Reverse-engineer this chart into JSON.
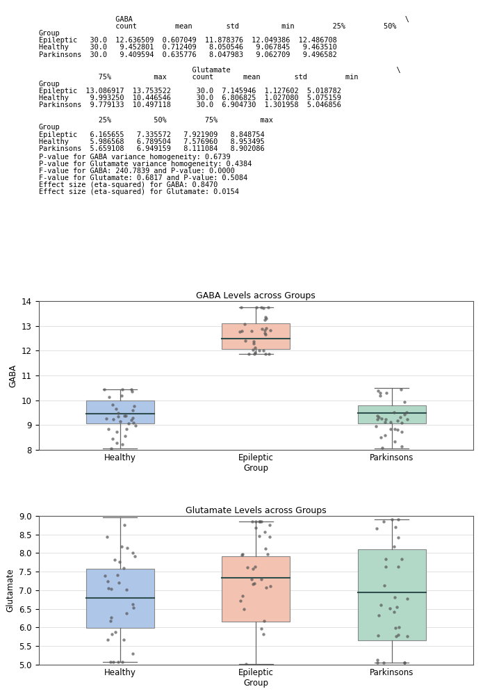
{
  "gaba_stats": {
    "Healthy": {
      "q1": 9.067845,
      "median": 9.46351,
      "q3": 9.99325,
      "min": 8.050546,
      "max": 10.446546
    },
    "Epileptic": {
      "q1": 12.049386,
      "median": 12.486708,
      "q3": 13.086917,
      "min": 11.878376,
      "max": 13.753522
    },
    "Parkinsons": {
      "q1": 9.062709,
      "median": 9.496582,
      "q3": 9.779133,
      "min": 8.047983,
      "max": 10.497118
    }
  },
  "glutamate_stats": {
    "Healthy": {
      "q1": 5.986568,
      "median": 6.789504,
      "q3": 7.57696,
      "min": 5.075159,
      "max": 8.953495
    },
    "Epileptic": {
      "q1": 6.165655,
      "median": 7.335572,
      "q3": 7.921909,
      "min": 5.018782,
      "max": 8.848754
    },
    "Parkinsons": {
      "q1": 5.659108,
      "median": 6.949159,
      "q3": 8.111084,
      "min": 5.046856,
      "max": 8.902086
    }
  },
  "gaba_title": "GABA Levels across Groups",
  "glutamate_title": "Glutamate Levels across Groups",
  "gaba_ylabel": "GABA",
  "glutamate_ylabel": "Glutamate",
  "gaba_ylim": [
    8,
    14
  ],
  "glutamate_ylim": [
    5.0,
    9.0
  ],
  "groups_order": [
    "Healthy",
    "Epileptic\nGroup",
    "Parkinsons"
  ],
  "groups_keys": [
    "Healthy",
    "Epileptic",
    "Parkinsons"
  ],
  "box_colors": {
    "Healthy": "#aec6e8",
    "Epileptic": "#f4c2b0",
    "Parkinsons": "#b2d8c8"
  },
  "text_lines": [
    [
      "                  GABA                                                                \\",
      7.8,
      "top"
    ],
    [
      "                  count         mean        std          min         25%         50%",
      7.55,
      "top"
    ],
    [
      "Group",
      7.3,
      "top"
    ],
    [
      "Epileptic   30.0  12.636509  0.607049  11.878376  12.049386  12.486708",
      7.05,
      "top"
    ],
    [
      "Healthy     30.0   9.452801  0.712409   8.050546   9.067845   9.463510",
      6.8,
      "top"
    ],
    [
      "Parkinsons  30.0   9.409594  0.635776   8.047983   9.062709   9.496582",
      6.55,
      "top"
    ],
    [
      "",
      6.3,
      "top"
    ],
    [
      "                                    Glutamate                                       \\",
      6.0,
      "top"
    ],
    [
      "              75%          max      count       mean        std         min",
      5.75,
      "top"
    ],
    [
      "Group",
      5.5,
      "top"
    ],
    [
      "Epileptic  13.086917  13.753522      30.0  7.145946  1.127602  5.018782",
      5.25,
      "top"
    ],
    [
      "Healthy     9.993250  10.446546      30.0  6.806825  1.027080  5.075159",
      5.0,
      "top"
    ],
    [
      "Parkinsons  9.779133  10.497118      30.0  6.904730  1.301958  5.046856",
      4.75,
      "top"
    ],
    [
      "",
      4.5,
      "top"
    ],
    [
      "              25%          50%         75%          max",
      4.2,
      "top"
    ],
    [
      "Group",
      3.95,
      "top"
    ],
    [
      "Epileptic   6.165655   7.335572   7.921909   8.848754",
      3.7,
      "top"
    ],
    [
      "Healthy     5.986568   6.789504   7.576960   8.953495",
      3.45,
      "top"
    ],
    [
      "Parkinsons  5.659108   6.949159   8.111084   8.902086",
      3.2,
      "top"
    ],
    [
      "P-value for GABA variance homogeneity: 0.6739",
      2.9,
      "top"
    ],
    [
      "P-value for Glutamate variance homogeneity: 0.4384",
      2.65,
      "top"
    ],
    [
      "F-value for GABA: 240.7839 and P-value: 0.0000",
      2.4,
      "top"
    ],
    [
      "F-value for Glutamate: 0.6817 and P-value: 0.5084",
      2.15,
      "top"
    ],
    [
      "Effect size (eta-squared) for GABA: 0.8470",
      1.9,
      "top"
    ],
    [
      "Effect size (eta-squared) for Glutamate: 0.0154",
      1.65,
      "top"
    ]
  ]
}
